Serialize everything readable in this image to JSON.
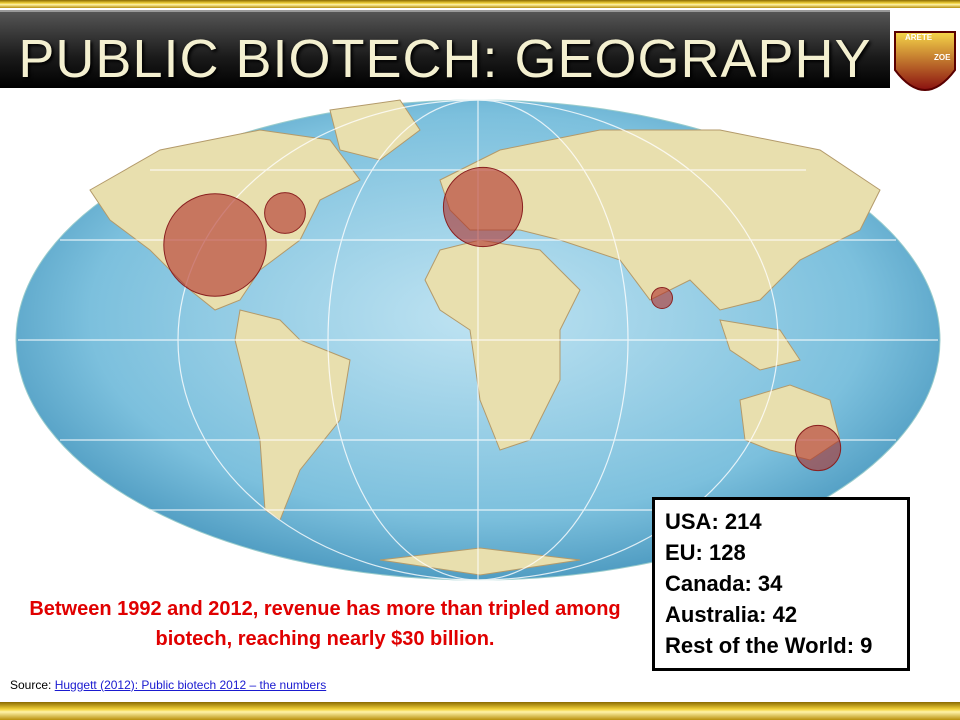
{
  "header": {
    "title": "PUBLIC BIOTECH: GEOGRAPHY",
    "logo_top": "ARETE",
    "logo_bottom": "ZOE"
  },
  "regions": [
    {
      "name": "USA:",
      "value": 214
    },
    {
      "name": "EU:",
      "value": 128
    },
    {
      "name": "Canada:",
      "value": 34
    },
    {
      "name": "Australia:",
      "value": 42
    },
    {
      "name": "Rest of the World:",
      "value": 9
    }
  ],
  "caption": "Between 1992 and 2012, revenue has more than tripled among biotech, reaching nearly $30 billion.",
  "source": {
    "label": "Source:",
    "link": "Huggett (2012): Public biotech 2012 – the numbers"
  }
}
